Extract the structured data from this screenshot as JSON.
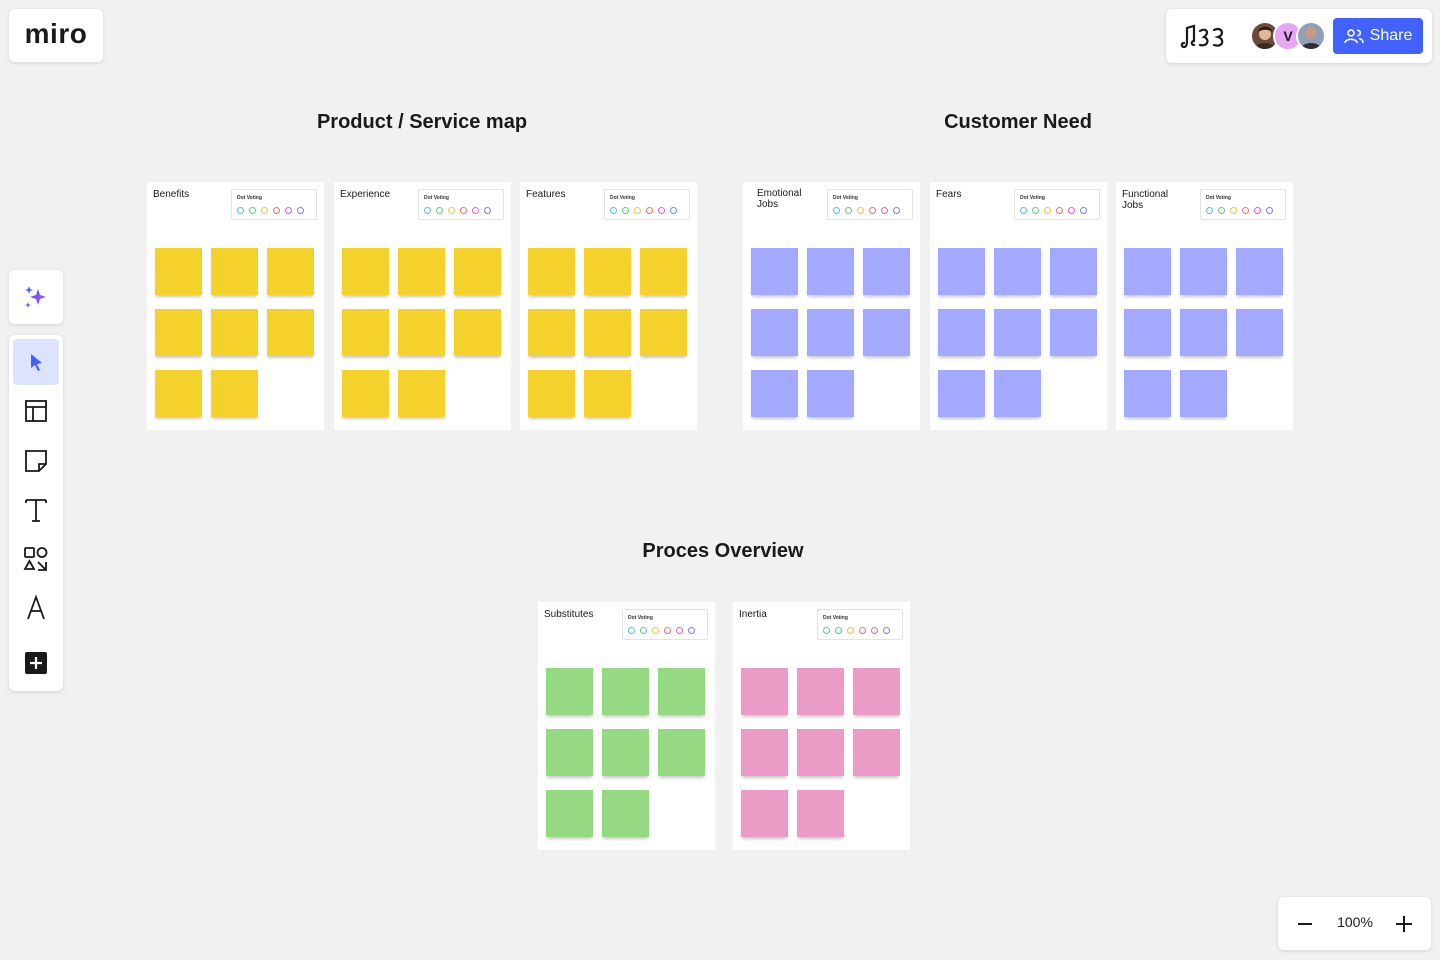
{
  "app": {
    "logo": "miro"
  },
  "header": {
    "share_label": "Share",
    "avatars": [
      {
        "name": "user-1",
        "initial": "",
        "color": "#6b4a3a"
      },
      {
        "name": "user-2",
        "initial": "V",
        "color": "#e7a6f3"
      },
      {
        "name": "user-3",
        "initial": "",
        "color": "#8fa0b6"
      }
    ]
  },
  "toolbar": {
    "icons": [
      "ai-sparkle-icon",
      "select-cursor-icon",
      "templates-icon",
      "sticky-note-icon",
      "text-icon",
      "shapes-icon",
      "pen-icon",
      "more-apps-icon"
    ]
  },
  "zoom": {
    "level": "100%"
  },
  "colors": {
    "yellow": "#f5d12c",
    "blue": "#a3a9ff",
    "green": "#95d982",
    "pink": "#eb9cc6",
    "share": "#4262ff"
  },
  "sections": [
    {
      "title": "Product / Service map"
    },
    {
      "title": "Customer Need"
    },
    {
      "title": "Proces Overview"
    }
  ],
  "vote_label": "Dot Voting",
  "vote_dot_colors": [
    "#4fc6d8",
    "#5fce7b",
    "#f0c63a",
    "#f0716f",
    "#ea5bcf",
    "#7b7ff5"
  ],
  "frames": [
    {
      "label": "Benefits",
      "color": "yellow",
      "stickies": 8
    },
    {
      "label": "Experience",
      "color": "yellow",
      "stickies": 8
    },
    {
      "label": "Features",
      "color": "yellow",
      "stickies": 8
    },
    {
      "label": "Emotional Jobs",
      "color": "blue",
      "stickies": 8
    },
    {
      "label": "Fears",
      "color": "blue",
      "stickies": 8
    },
    {
      "label": "Functional Jobs",
      "color": "blue",
      "stickies": 8
    },
    {
      "label": "Substitutes",
      "color": "green",
      "stickies": 8
    },
    {
      "label": "Inertia",
      "color": "pink",
      "stickies": 8
    }
  ]
}
